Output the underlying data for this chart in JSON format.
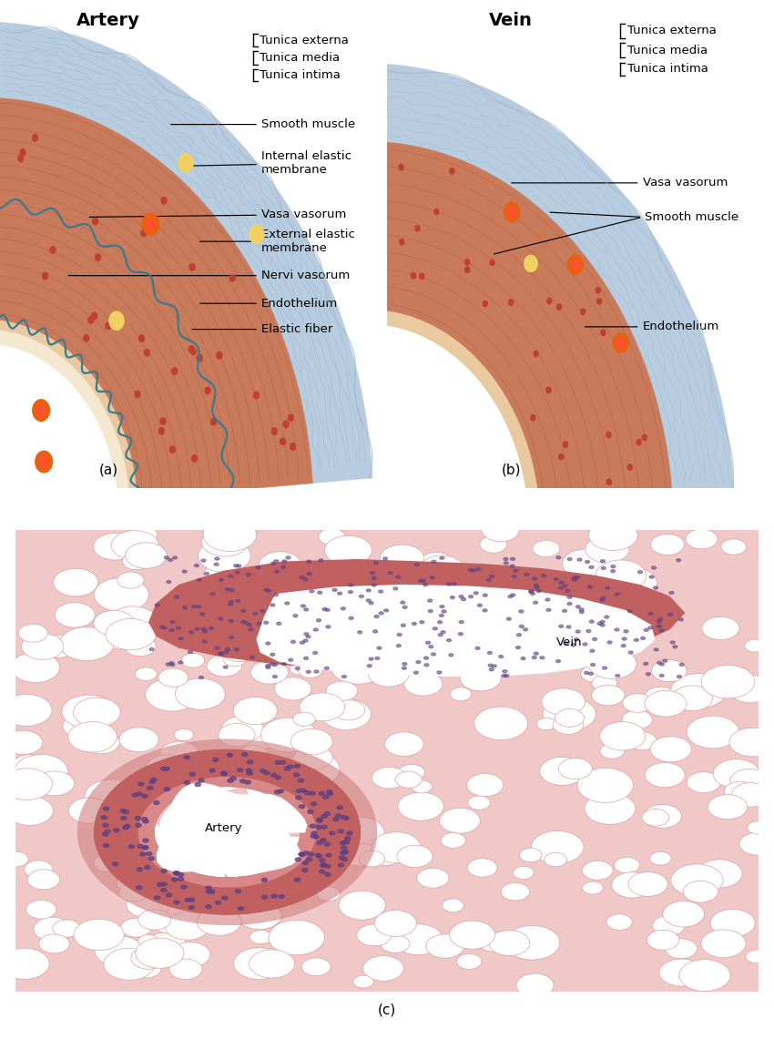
{
  "fig_width": 8.5,
  "fig_height": 11.52,
  "bg_color": "#ffffff",
  "panel_a_title": "Artery",
  "panel_b_title": "Vein",
  "panel_a_label": "(a)",
  "panel_b_label": "(b)",
  "panel_c_label": "(c)",
  "colors": {
    "tunica_externa_fill": "#b8cce0",
    "tunica_externa_fiber": "#7a9ab8",
    "tunica_media_fill": "#c97a5a",
    "tunica_media_fiber": "#a05535",
    "tunica_media_dot": "#c04030",
    "tunica_intima_fill": "#e8c9a0",
    "lumen_fill": "#ffffff",
    "elastic_line": "#3a7a90",
    "outer_edge": "#a0b8c8",
    "vasa_outer": "#e86010",
    "vasa_inner": "#ff5030",
    "yellow_dot": "#f0d060",
    "annotation_line": "#000000"
  },
  "micrograph_bg": "#f0c8c8",
  "micrograph_adipocyte_fill": "#ffffff",
  "micrograph_adipocyte_edge": "#e0a0a0",
  "micrograph_wall": "#c06060",
  "micrograph_nuclei": "#604080",
  "micrograph_artery_label": "Artery",
  "micrograph_vein_label": "Vein"
}
